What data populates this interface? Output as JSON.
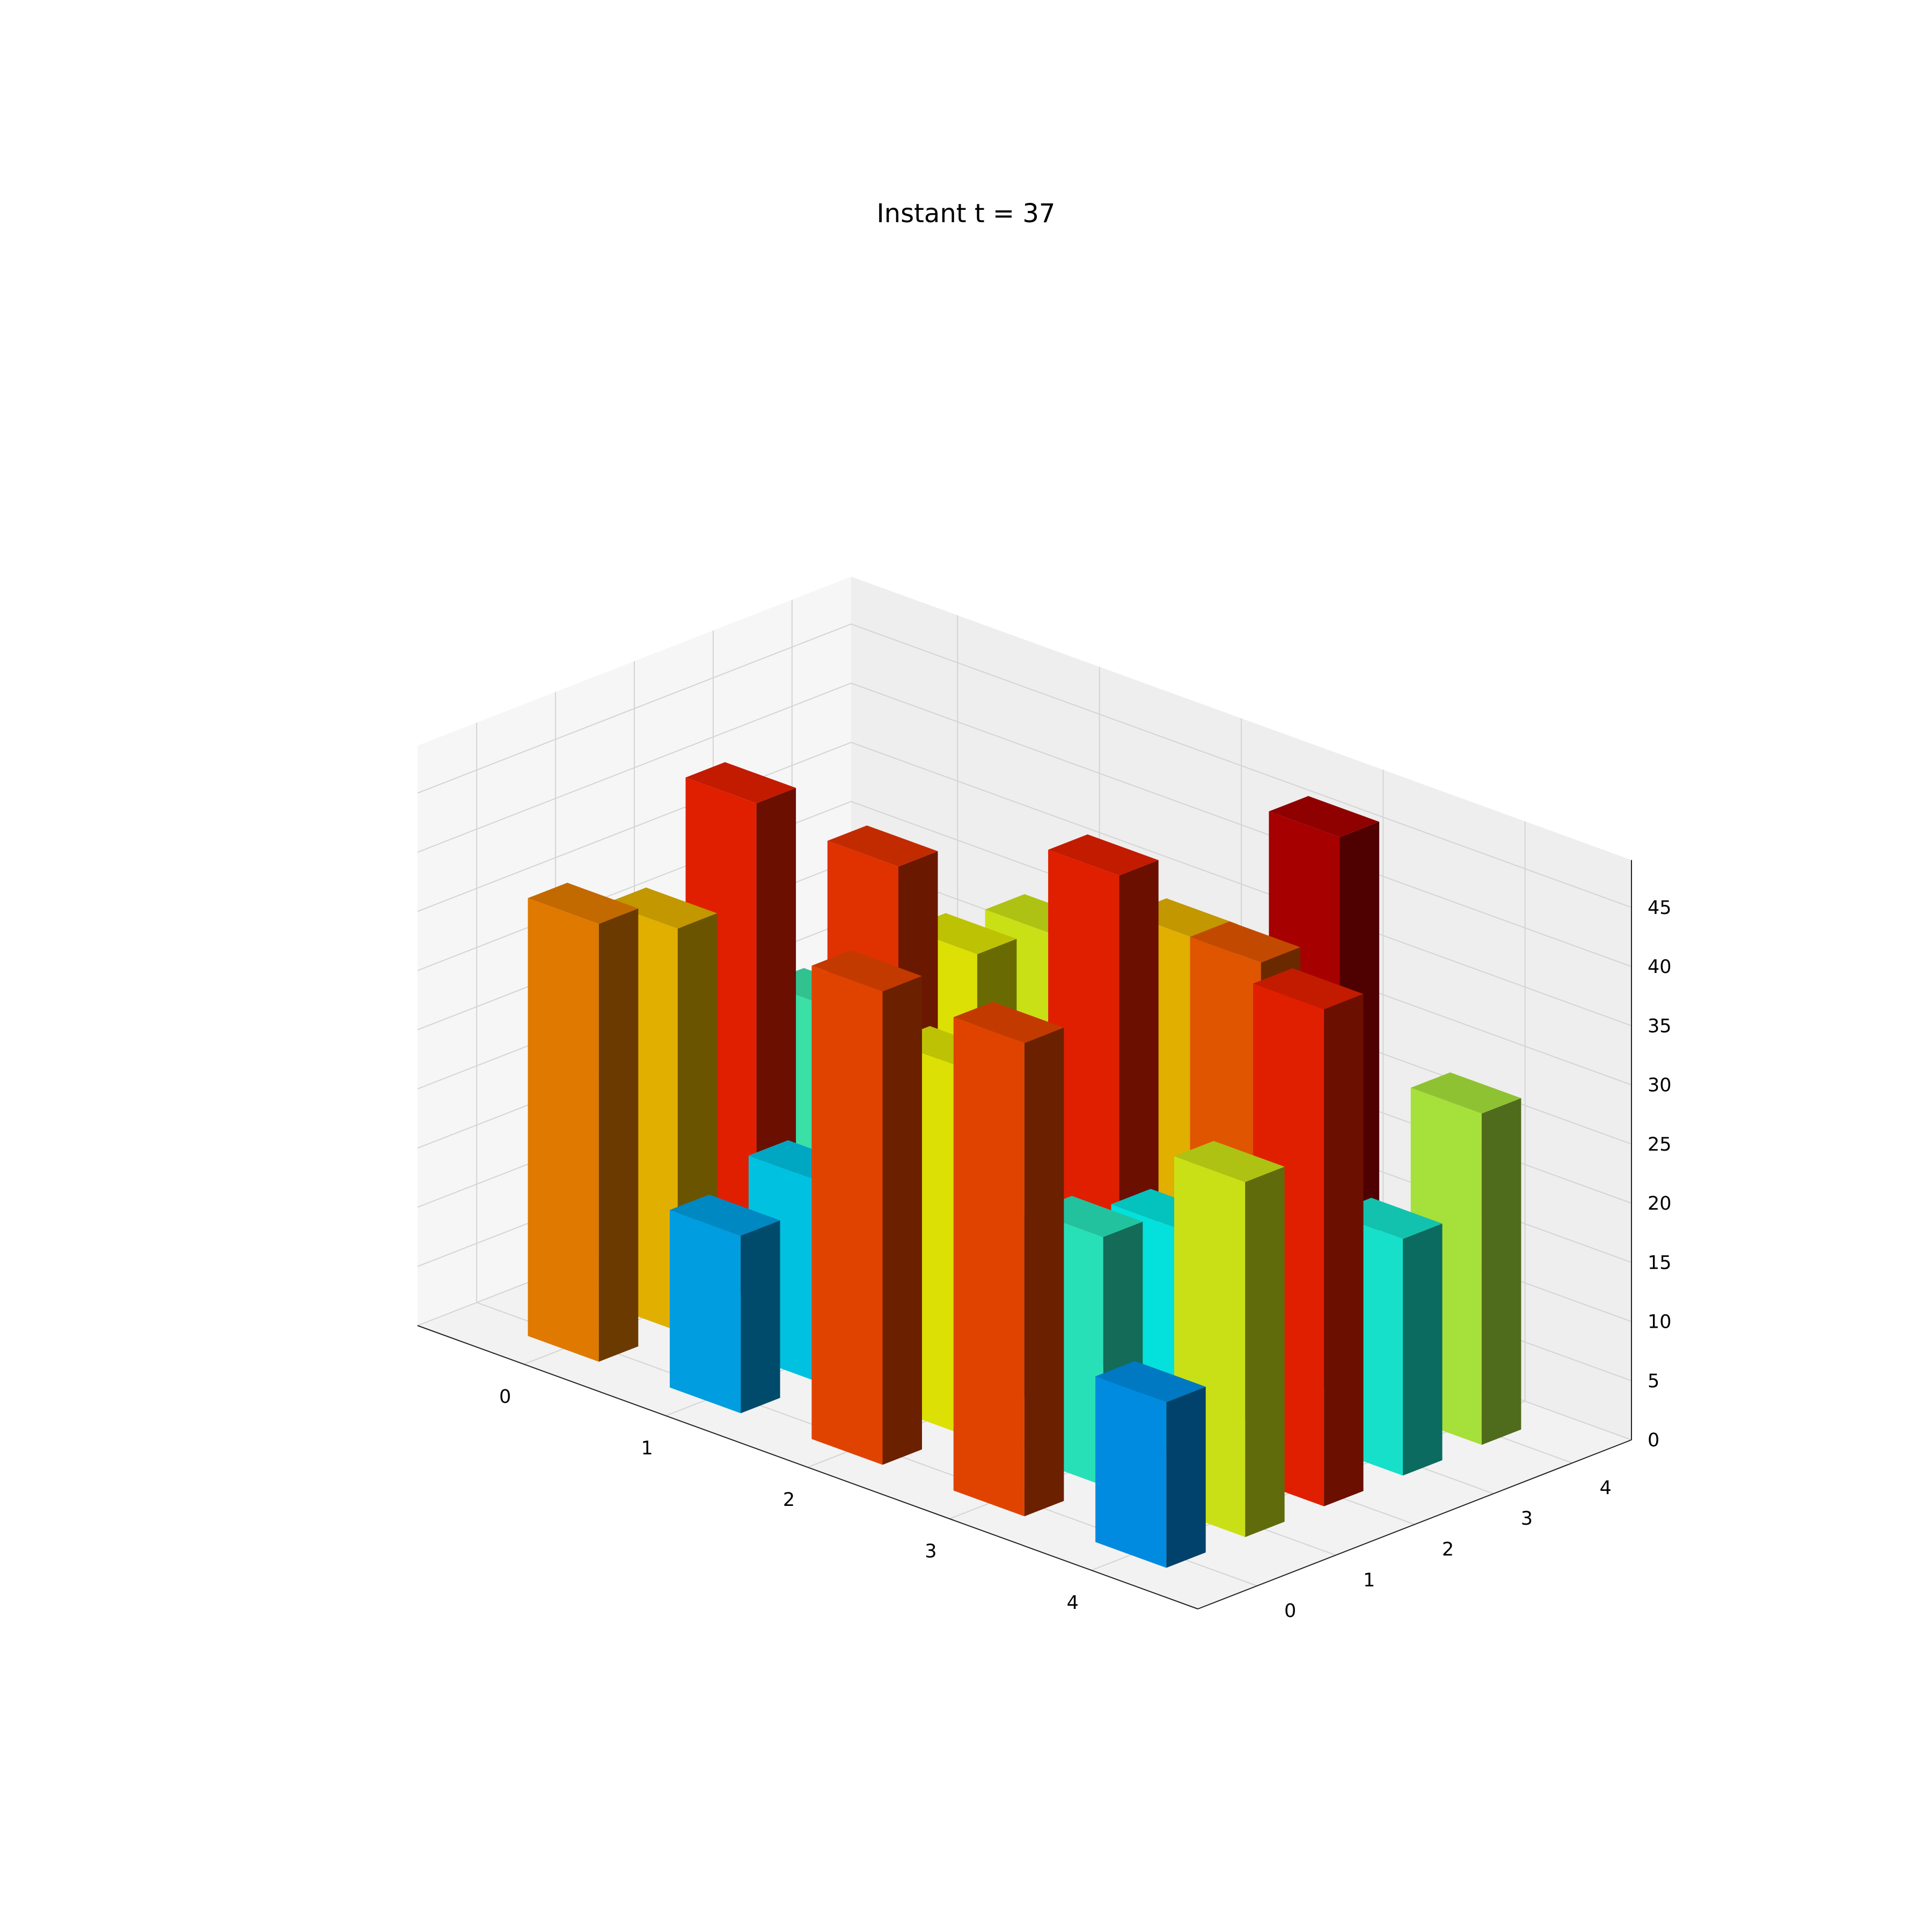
{
  "chart_data": {
    "type": "bar3d",
    "title": "Instant t = 37",
    "xlabel": "",
    "ylabel": "",
    "zlabel": "",
    "x_ticks": [
      "0",
      "1",
      "2",
      "3",
      "4"
    ],
    "y_ticks": [
      "0",
      "1",
      "2",
      "3",
      "4"
    ],
    "z_ticks": [
      "0",
      "5",
      "10",
      "15",
      "20",
      "25",
      "30",
      "35",
      "40",
      "45"
    ],
    "zlim": [
      0,
      49
    ],
    "grid": true,
    "colormap": "jet (bar color by height)",
    "bars": [
      {
        "x": 0,
        "y": 0,
        "z": 37
      },
      {
        "x": 0,
        "y": 1,
        "z": 34
      },
      {
        "x": 0,
        "y": 2,
        "z": 42
      },
      {
        "x": 0,
        "y": 3,
        "z": 22
      },
      {
        "x": 0,
        "y": 4,
        "z": 16
      },
      {
        "x": 1,
        "y": 0,
        "z": 15
      },
      {
        "x": 1,
        "y": 1,
        "z": 17
      },
      {
        "x": 1,
        "y": 2,
        "z": 41
      },
      {
        "x": 1,
        "y": 3,
        "z": 31
      },
      {
        "x": 1,
        "y": 4,
        "z": 30
      },
      {
        "x": 2,
        "y": 0,
        "z": 40
      },
      {
        "x": 2,
        "y": 1,
        "z": 31
      },
      {
        "x": 2,
        "y": 2,
        "z": 13
      },
      {
        "x": 2,
        "y": 3,
        "z": 42
      },
      {
        "x": 2,
        "y": 4,
        "z": 34
      },
      {
        "x": 3,
        "y": 0,
        "z": 40
      },
      {
        "x": 3,
        "y": 1,
        "z": 21
      },
      {
        "x": 3,
        "y": 2,
        "z": 19
      },
      {
        "x": 3,
        "y": 3,
        "z": 39
      },
      {
        "x": 3,
        "y": 4,
        "z": 47
      },
      {
        "x": 4,
        "y": 0,
        "z": 14
      },
      {
        "x": 4,
        "y": 1,
        "z": 30
      },
      {
        "x": 4,
        "y": 2,
        "z": 42
      },
      {
        "x": 4,
        "y": 3,
        "z": 20
      },
      {
        "x": 4,
        "y": 4,
        "z": 28
      }
    ]
  }
}
